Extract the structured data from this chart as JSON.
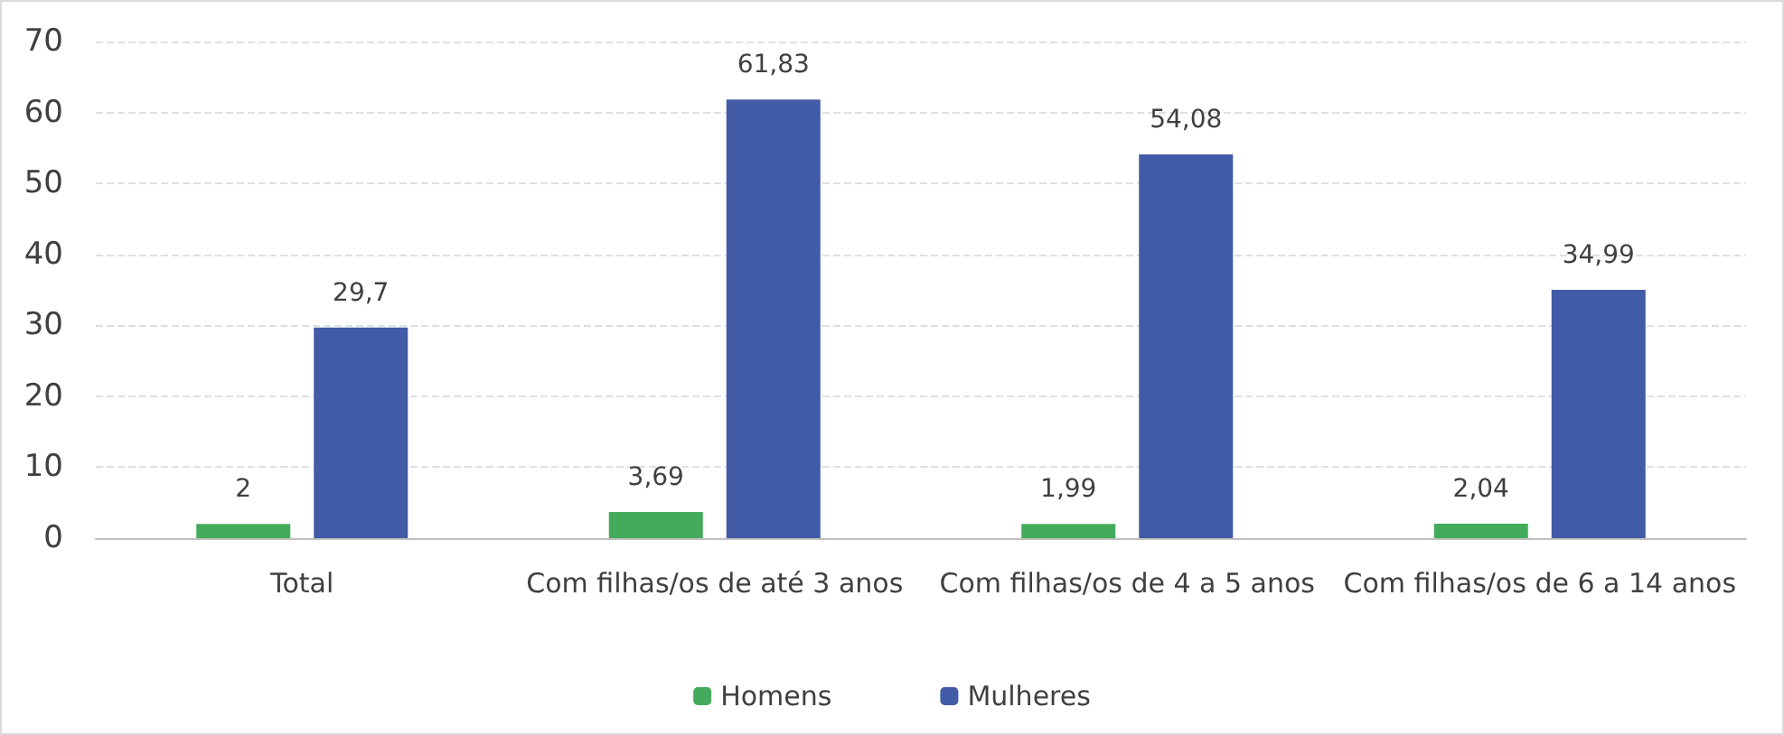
{
  "chart_data": {
    "type": "bar",
    "categories": [
      "Total",
      "Com filhas/os de até 3 anos",
      "Com filhas/os de 4 a 5 anos",
      "Com filhas/os de 6 a 14 anos"
    ],
    "series": [
      {
        "name": "Homens",
        "color": "#44ab5c",
        "values": [
          2,
          3.69,
          1.99,
          2.04
        ],
        "value_labels": [
          "2",
          "3,69",
          "1,99",
          "2,04"
        ]
      },
      {
        "name": "Mulheres",
        "color": "#425ba6",
        "values": [
          29.7,
          61.83,
          54.08,
          34.99
        ],
        "value_labels": [
          "29,7",
          "61,83",
          "54,08",
          "34,99"
        ]
      }
    ],
    "ylim": [
      0,
      70
    ],
    "yticks": [
      0,
      10,
      20,
      30,
      40,
      50,
      60,
      70
    ],
    "grid": "y",
    "legend": "bottom"
  }
}
